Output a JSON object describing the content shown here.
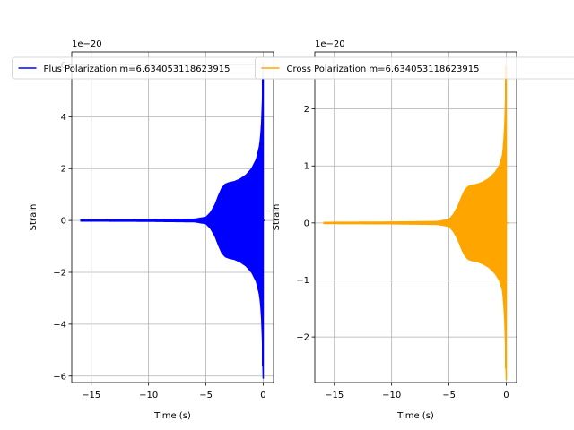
{
  "chart_data": [
    {
      "type": "line",
      "title": "",
      "xlabel": "Time (s)",
      "ylabel": "Strain",
      "offset_text": "1e−20",
      "xlim": [
        -16.7,
        0.9
      ],
      "ylim": [
        -6.25,
        6.5
      ],
      "xticks": [
        -15,
        -10,
        -5,
        0
      ],
      "xtick_labels": [
        "−15",
        "−10",
        "−5",
        "0"
      ],
      "yticks": [
        -6,
        -4,
        -2,
        0,
        2,
        4,
        6
      ],
      "ytick_labels": [
        "−6",
        "−4",
        "−2",
        "0",
        "2",
        "4",
        "6"
      ],
      "grid": true,
      "legend_position": "upper-center",
      "series": [
        {
          "name": "Plus Polarization m=6.634053118623915",
          "color": "#0000ff",
          "time_start": -15.9,
          "time_end": 0.0,
          "envelope_time": [
            -15.9,
            -10,
            -6,
            -5,
            -4.6,
            -4.2,
            -3.9,
            -3.6,
            -3.3,
            -3.0,
            -2.5,
            -2.0,
            -1.5,
            -1.0,
            -0.6,
            -0.3,
            -0.15,
            -0.05,
            0.0
          ],
          "envelope_amplitude": [
            0.02,
            0.03,
            0.05,
            0.12,
            0.3,
            0.6,
            0.95,
            1.25,
            1.4,
            1.45,
            1.5,
            1.6,
            1.75,
            2.0,
            2.35,
            2.9,
            3.6,
            4.8,
            6.1
          ],
          "min_value": -5.6,
          "max_value": 6.1
        }
      ]
    },
    {
      "type": "line",
      "title": "",
      "xlabel": "Time (s)",
      "ylabel": "Strain",
      "offset_text": "1e−20",
      "xlim": [
        -16.7,
        0.9
      ],
      "ylim": [
        -2.8,
        3.0
      ],
      "xticks": [
        -15,
        -10,
        -5,
        0
      ],
      "xtick_labels": [
        "−15",
        "−10",
        "−5",
        "0"
      ],
      "yticks": [
        -2,
        -1,
        0,
        1,
        2
      ],
      "ytick_labels": [
        "−2",
        "−1",
        "0",
        "1",
        "2"
      ],
      "grid": true,
      "legend_position": "upper-center",
      "series": [
        {
          "name": "Cross Polarization m=6.634053118623915",
          "color": "#ffa500",
          "time_start": -15.9,
          "time_end": 0.0,
          "envelope_time": [
            -15.9,
            -10,
            -6,
            -5,
            -4.6,
            -4.2,
            -3.9,
            -3.6,
            -3.3,
            -3.0,
            -2.5,
            -2.0,
            -1.5,
            -1.0,
            -0.6,
            -0.3,
            -0.15,
            -0.05,
            0.0
          ],
          "envelope_amplitude": [
            0.01,
            0.015,
            0.025,
            0.06,
            0.15,
            0.3,
            0.45,
            0.58,
            0.64,
            0.66,
            0.68,
            0.72,
            0.78,
            0.88,
            1.0,
            1.2,
            1.6,
            2.2,
            2.75
          ],
          "min_value": -2.55,
          "max_value": 2.75
        }
      ]
    }
  ]
}
